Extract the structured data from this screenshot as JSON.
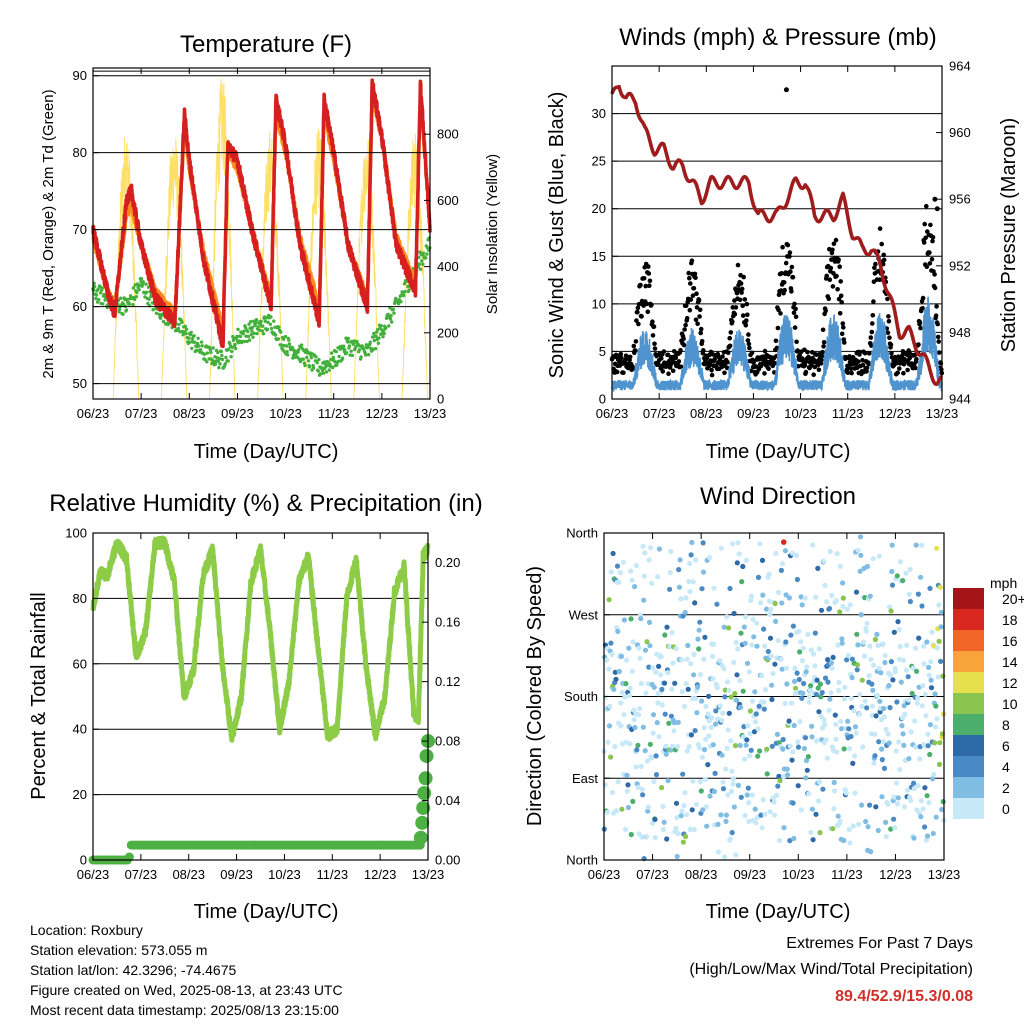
{
  "x_ticks": [
    "06/23",
    "07/23",
    "08/23",
    "09/23",
    "10/23",
    "11/23",
    "12/23",
    "13/23"
  ],
  "colors": {
    "red": "#d62020",
    "orange": "#ff8c1a",
    "green": "#44b03c",
    "yellow": "#ffe066",
    "maroon": "#a01c1c",
    "blue": "#4f94cf",
    "rh": "#8ccc47",
    "rain": "#4cb043",
    "extremes": "#d0302a"
  },
  "chart_data": [
    {
      "type": "line",
      "title": "Temperature (F)",
      "xlabel": "Time (Day/UTC)",
      "ylabel": "2m & 9m T (Red, Orange) & 2m Td (Green)",
      "y2label": "Solar Insolation (Yellow)",
      "xlim": [
        6,
        13
      ],
      "ylim": [
        48,
        91
      ],
      "y_ticks": [
        50,
        60,
        70,
        80,
        90
      ],
      "y2lim": [
        0,
        1000
      ],
      "y2_ticks": [
        0,
        200,
        400,
        600,
        800
      ],
      "series": [
        {
          "name": "2m T",
          "x": [
            6,
            6.3,
            6.45,
            6.7,
            6.8,
            7.0,
            7.3,
            7.7,
            7.9,
            8.0,
            8.3,
            8.7,
            8.8,
            9.0,
            9.3,
            9.7,
            9.8,
            10.0,
            10.3,
            10.7,
            10.8,
            11.0,
            11.3,
            11.7,
            11.8,
            12.0,
            12.3,
            12.7,
            12.8,
            13.0
          ],
          "y": [
            70,
            62,
            59,
            74,
            75,
            68,
            61,
            58,
            85,
            79,
            66,
            55,
            81,
            79,
            70,
            60,
            87,
            81,
            68,
            58,
            87,
            80,
            68,
            60,
            89,
            82,
            68,
            62,
            89,
            70
          ]
        },
        {
          "name": "9m T",
          "x": [
            6,
            6.3,
            6.45,
            6.7,
            6.8,
            7.0,
            7.3,
            7.7,
            7.9,
            8.0,
            8.3,
            8.7,
            8.8,
            9.0,
            9.3,
            9.7,
            9.8,
            10.0,
            10.3,
            10.7,
            10.8,
            11.0,
            11.3,
            11.7,
            11.8,
            12.0,
            12.3,
            12.7,
            12.8,
            13.0
          ],
          "y": [
            69,
            62,
            60,
            72,
            73,
            68,
            62,
            59,
            83,
            78,
            67,
            57,
            80,
            78,
            70,
            61,
            85,
            80,
            69,
            60,
            85,
            79,
            68,
            61,
            87,
            82,
            69,
            63,
            87,
            71
          ]
        },
        {
          "name": "2m Td",
          "x": [
            6,
            6.3,
            6.7,
            7.0,
            7.3,
            7.7,
            8.0,
            8.3,
            8.7,
            9.0,
            9.3,
            9.7,
            10.0,
            10.3,
            10.7,
            11.0,
            11.3,
            11.7,
            12.0,
            12.3,
            12.7,
            13.0
          ],
          "y": [
            62,
            61,
            60,
            63,
            60,
            58,
            56,
            54,
            53,
            56,
            57,
            58,
            55,
            54,
            52,
            53,
            55,
            54,
            57,
            60,
            65,
            68
          ]
        },
        {
          "name": "Solar",
          "x": [
            6.55,
            6.7,
            6.85,
            7.55,
            7.7,
            7.85,
            8.55,
            8.7,
            8.85,
            9.55,
            9.7,
            9.85,
            10.55,
            10.7,
            10.85,
            11.55,
            11.7,
            11.85,
            12.55,
            12.7,
            12.85
          ],
          "y": [
            0,
            850,
            0,
            0,
            800,
            0,
            0,
            980,
            0,
            0,
            820,
            0,
            0,
            900,
            0,
            0,
            820,
            0,
            0,
            950,
            0
          ]
        }
      ]
    },
    {
      "type": "scatter",
      "title": "Winds (mph) & Pressure (mb)",
      "xlabel": "Time (Day/UTC)",
      "ylabel": "Sonic Wind & Gust (Blue, Black)",
      "y2label": "Station Pressure (Maroon)",
      "xlim": [
        6,
        13
      ],
      "ylim": [
        0,
        35
      ],
      "y_ticks": [
        0,
        5,
        10,
        15,
        20,
        25,
        30
      ],
      "y2lim": [
        944,
        964
      ],
      "y2_ticks": [
        944,
        948,
        952,
        956,
        960,
        964
      ],
      "series": [
        {
          "name": "Pressure",
          "x": [
            6,
            6.15,
            6.3,
            6.5,
            6.7,
            6.9,
            7.1,
            7.3,
            7.5,
            7.7,
            7.9,
            8.1,
            8.3,
            8.5,
            8.7,
            8.9,
            9.1,
            9.3,
            9.5,
            9.7,
            9.9,
            10.1,
            10.3,
            10.5,
            10.7,
            10.9,
            11.1,
            11.3,
            11.5,
            11.7,
            11.9,
            12.1,
            12.3,
            12.5,
            12.7,
            12.9,
            13.0
          ],
          "y": [
            962,
            963,
            962,
            962,
            960,
            959,
            959,
            958,
            958,
            957,
            956,
            957,
            957,
            957,
            957,
            957,
            955,
            955,
            955,
            956,
            957,
            957,
            955,
            955,
            955,
            956,
            954,
            953,
            953,
            952,
            950,
            948,
            948,
            947,
            946,
            945,
            945
          ]
        },
        {
          "name": "Gust",
          "x": [
            9.7,
            12.85,
            12.9
          ],
          "y": [
            32.5,
            21,
            20
          ]
        }
      ]
    },
    {
      "type": "line",
      "title": "Relative Humidity (%) & Precipitation (in)",
      "xlabel": "Time (Day/UTC)",
      "ylabel": "Percent & Total Rainfall",
      "xlim": [
        6,
        13
      ],
      "ylim": [
        0,
        100
      ],
      "y_ticks": [
        0,
        20,
        40,
        60,
        80,
        100
      ],
      "y2lim": [
        0,
        0.22
      ],
      "y2_ticks": [
        0.0,
        0.04,
        0.08,
        0.12,
        0.16,
        0.2
      ],
      "series": [
        {
          "name": "RH",
          "x": [
            6,
            6.15,
            6.3,
            6.5,
            6.7,
            6.9,
            7.1,
            7.3,
            7.5,
            7.7,
            7.9,
            8.1,
            8.3,
            8.5,
            8.7,
            8.9,
            9.1,
            9.3,
            9.5,
            9.7,
            9.9,
            10.1,
            10.3,
            10.5,
            10.7,
            10.9,
            11.1,
            11.3,
            11.5,
            11.7,
            11.9,
            12.1,
            12.3,
            12.5,
            12.7,
            12.8,
            12.9,
            13.0
          ],
          "y": [
            77,
            88,
            87,
            97,
            92,
            62,
            70,
            97,
            97,
            85,
            50,
            58,
            87,
            95,
            60,
            37,
            50,
            85,
            95,
            70,
            40,
            55,
            85,
            93,
            65,
            38,
            40,
            80,
            92,
            60,
            38,
            50,
            82,
            90,
            45,
            43,
            93,
            95
          ]
        },
        {
          "name": "Total Rainfall",
          "x": [
            6,
            6.5,
            6.75,
            6.8,
            7.5,
            8,
            9,
            10,
            11,
            12,
            12.85,
            12.87,
            12.9,
            12.95,
            13.0
          ],
          "y": [
            0,
            0,
            0,
            0.01,
            0.01,
            0.01,
            0.01,
            0.01,
            0.01,
            0.01,
            0.01,
            0.025,
            0.045,
            0.065,
            0.08
          ]
        }
      ]
    },
    {
      "type": "scatter",
      "title": "Wind Direction",
      "xlabel": "Time (Day/UTC)",
      "ylabel": "Direction (Colored By Speed)",
      "xlim": [
        6,
        13
      ],
      "y_ticks": [
        "North",
        "East",
        "South",
        "West",
        "North"
      ],
      "legend": {
        "title": "mph",
        "labels": [
          "0",
          "2",
          "4",
          "6",
          "8",
          "10",
          "12",
          "14",
          "16",
          "18",
          "20+"
        ],
        "colors": [
          "#c6e8f7",
          "#7fbde3",
          "#4a8ac4",
          "#2f6aa8",
          "#4cae6b",
          "#8ac550",
          "#e6df4e",
          "#f9a43b",
          "#f26727",
          "#d9281f",
          "#a51418"
        ]
      }
    }
  ],
  "footer": {
    "location": "Location: Roxbury",
    "elevation": "Station elevation: 573.055 m",
    "latlon": "Station lat/lon: 42.3296; -74.4675",
    "created": "Figure created on Wed, 2025-08-13, at 23:43 UTC",
    "recent": "Most recent data timestamp: 2025/08/13 23:15:00"
  },
  "extremes": {
    "title": "Extremes For Past 7 Days",
    "subtitle": "(High/Low/Max Wind/Total Precipitation)",
    "values": "89.4/52.9/15.3/0.08"
  }
}
